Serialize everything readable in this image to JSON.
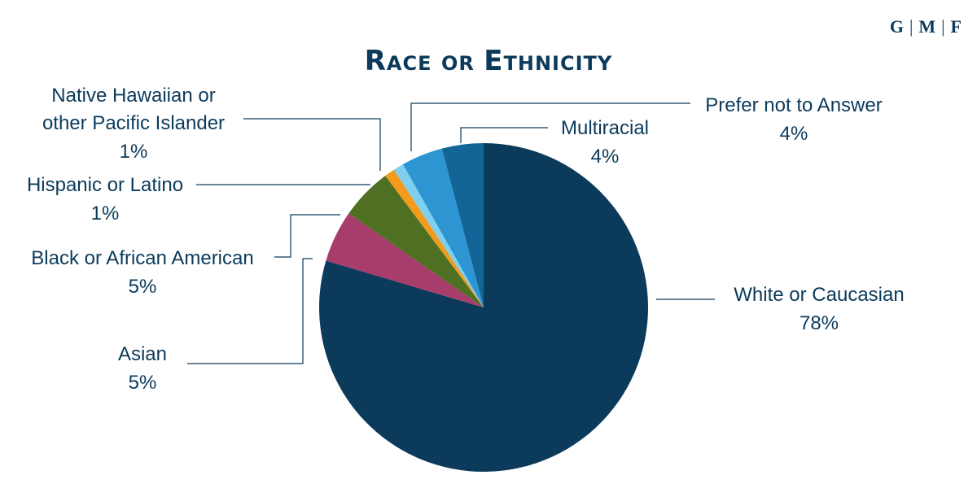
{
  "logo": {
    "parts": [
      "G",
      "M",
      "F"
    ]
  },
  "chart_data": {
    "type": "pie",
    "title": "Race or Ethnicity",
    "slices": [
      {
        "name": "White or Caucasian",
        "value": 78,
        "label": "78%",
        "color": "#0b3a5b"
      },
      {
        "name": "Asian",
        "value": 5,
        "label": "5%",
        "color": "#a63d6b"
      },
      {
        "name": "Black or African American",
        "value": 5,
        "label": "5%",
        "color": "#4f7023"
      },
      {
        "name": "Hispanic or Latino",
        "value": 1,
        "label": "1%",
        "color": "#f29b1d"
      },
      {
        "name": "Native Hawaiian or other Pacific Islander",
        "value": 1,
        "label": "1%",
        "color": "#7fd0ee"
      },
      {
        "name": "Prefer not to Answer",
        "value": 4,
        "label": "4%",
        "color": "#2e95d3"
      },
      {
        "name": "Multiracial",
        "value": 4,
        "label": "4%",
        "color": "#146597"
      }
    ]
  }
}
